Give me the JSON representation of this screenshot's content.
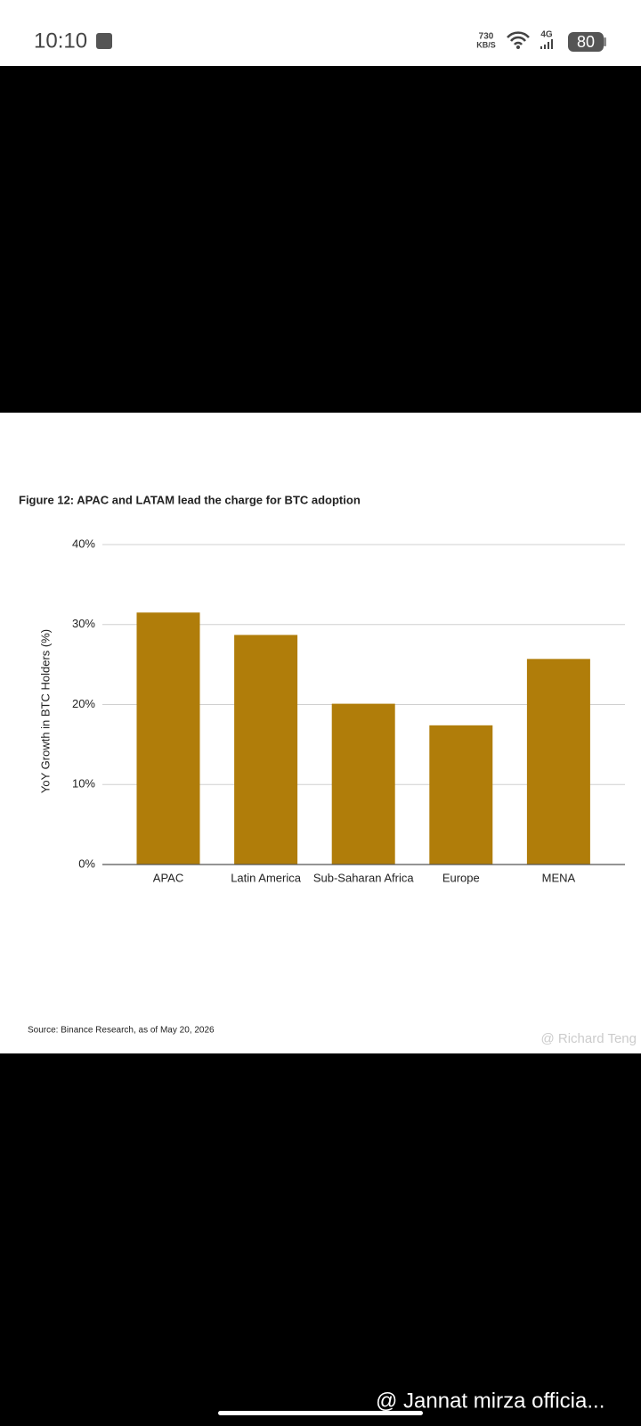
{
  "status_bar": {
    "time": "10:10",
    "net_speed": "730",
    "net_unit": "KB/S",
    "network": "4G",
    "battery": "80"
  },
  "chart_data": {
    "type": "bar",
    "title": "Figure 12: APAC and LATAM lead the charge for BTC adoption",
    "y_label": "YoY Growth in BTC Holders (%)",
    "categories": [
      "APAC",
      "Latin America",
      "Sub-Saharan Africa",
      "Europe",
      "MENA"
    ],
    "values": [
      31.5,
      28.7,
      20.1,
      17.4,
      25.7
    ],
    "color": "#b07d0a",
    "ylim": [
      0,
      40
    ],
    "yticks": [
      {
        "value": 0,
        "label": "0%"
      },
      {
        "value": 10,
        "label": "10%"
      },
      {
        "value": 20,
        "label": "20%"
      },
      {
        "value": 30,
        "label": "30%"
      },
      {
        "value": 40,
        "label": "40%"
      }
    ],
    "grid": true,
    "source": "Source: Binance Research, as of May 20, 2026"
  },
  "image_watermark": "@ Richard Teng",
  "footer_watermark": "@ Jannat mirza officia..."
}
